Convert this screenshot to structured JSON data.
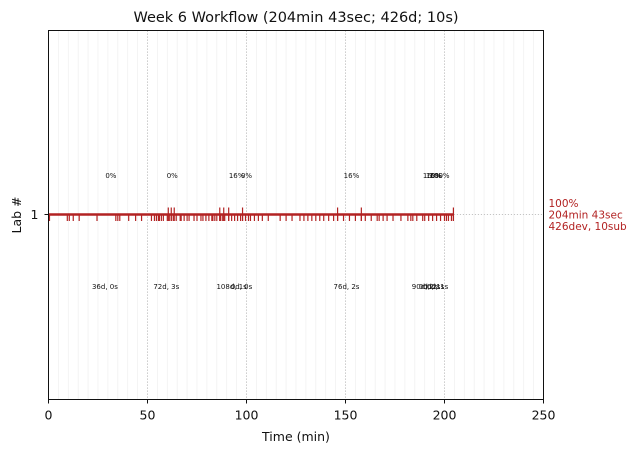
{
  "chart_data": {
    "type": "line",
    "title": "Week 6 Workflow (204min 43sec; 426d; 10s)",
    "xlabel": "Time (min)",
    "ylabel": "Lab #",
    "xlim": [
      0,
      250
    ],
    "x_ticks": [
      0,
      50,
      100,
      150,
      200,
      250
    ],
    "y_ticks": [
      1
    ],
    "grid": "vertical dotted lines at major ticks, faint minor lines every 5 min",
    "line_color": "#b22222",
    "series": [
      {
        "lab": 1,
        "start": 0,
        "end": 204.72,
        "events": [
          0.5,
          9.5,
          10.5,
          12.5,
          15.5,
          24.5,
          34,
          35,
          36,
          40.5,
          44,
          47,
          52,
          53.5,
          54.5,
          55.5,
          56,
          57,
          58,
          60,
          61,
          62,
          63,
          64.5,
          66.5,
          67,
          68.5,
          70,
          71,
          73.5,
          75,
          77,
          78,
          79.5,
          81,
          82.5,
          83,
          84,
          85,
          86.5,
          87,
          88,
          89,
          91,
          92.5,
          94,
          95.5,
          97,
          98,
          99.5,
          101,
          102,
          104,
          106,
          108,
          111,
          117,
          120,
          123,
          127,
          129,
          131,
          133,
          135,
          137,
          139,
          141.5,
          144,
          146,
          149,
          152,
          155,
          158,
          160,
          163,
          166,
          167,
          169,
          171,
          174,
          178,
          181.5,
          183,
          184,
          186,
          189,
          190,
          192,
          194,
          196,
          198,
          200,
          201,
          202,
          203.5,
          204.5
        ],
        "tall_events": [
          60.5,
          62,
          63.5,
          86.5,
          88.5,
          91,
          98,
          146,
          158,
          204.5
        ],
        "side_annotation": [
          "100%",
          "204min 43sec",
          "426dev, 10sub"
        ]
      }
    ],
    "annotations_upper": [
      {
        "x": 31.5,
        "text": "0%"
      },
      {
        "x": 62.5,
        "text": "0%"
      },
      {
        "x": 95,
        "text": "16%"
      },
      {
        "x": 100,
        "text": "0%"
      },
      {
        "x": 153,
        "text": "16%"
      },
      {
        "x": 193,
        "text": "16%"
      },
      {
        "x": 194.5,
        "text": "16%"
      },
      {
        "x": 196,
        "text": "0%"
      },
      {
        "x": 197.5,
        "text": "100%"
      }
    ],
    "annotations_lower": [
      {
        "x": 28.5,
        "text": "36d, 0s"
      },
      {
        "x": 59.5,
        "text": "72d, 3s"
      },
      {
        "x": 92.5,
        "text": "108d, 1s"
      },
      {
        "x": 97.5,
        "text": "0d, 0s"
      },
      {
        "x": 150.5,
        "text": "76d, 2s"
      },
      {
        "x": 190,
        "text": "90d, 2s"
      },
      {
        "x": 192.5,
        "text": "0d, 2s"
      },
      {
        "x": 194.5,
        "text": "0d, 1s"
      },
      {
        "x": 196.5,
        "text": "0d, 1s"
      }
    ]
  }
}
